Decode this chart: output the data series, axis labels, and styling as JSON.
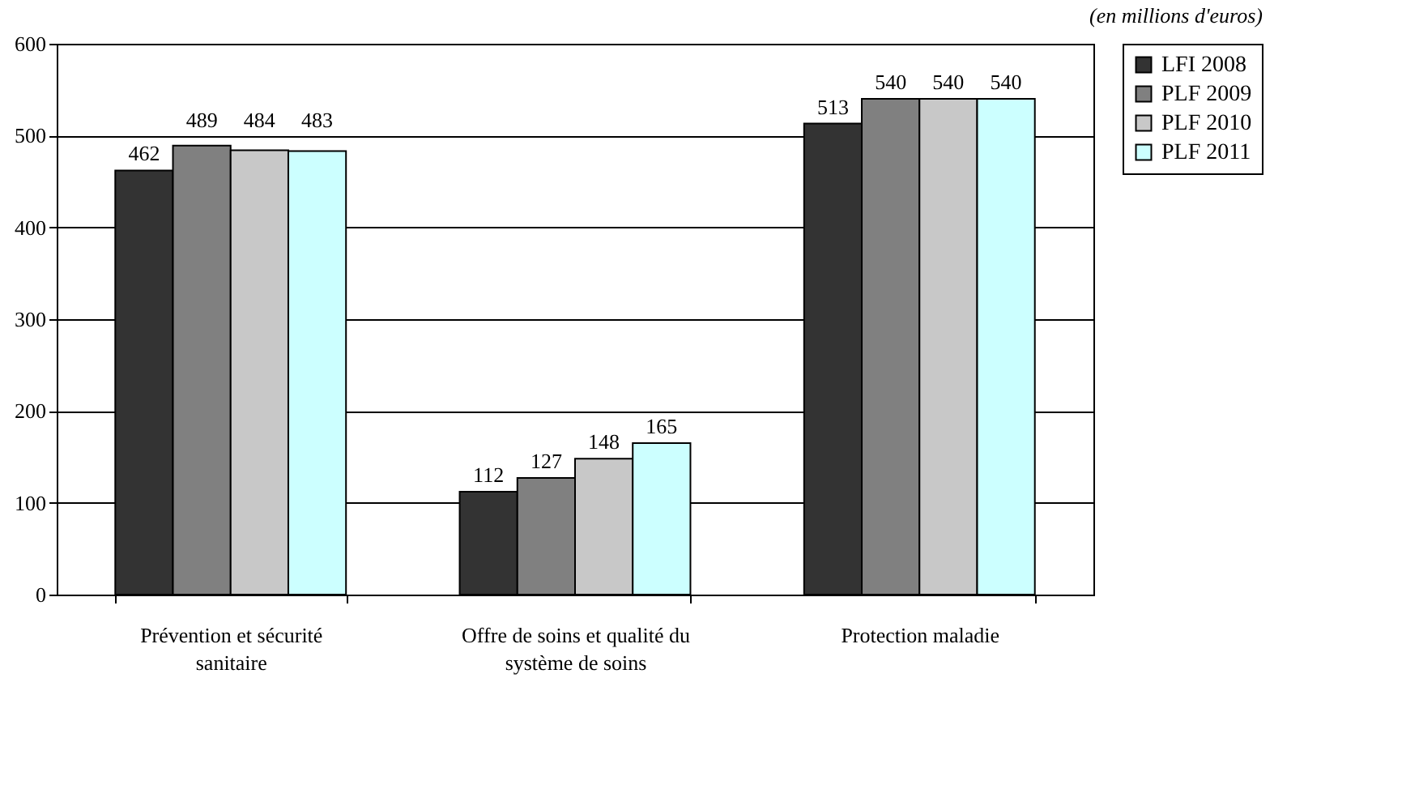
{
  "chart_data": {
    "type": "bar",
    "annotations": [
      "(en millions d'euros)"
    ],
    "categories": [
      "Prévention et sécurité sanitaire",
      "Offre de soins et qualité du système de soins",
      "Protection maladie"
    ],
    "series": [
      {
        "name": "LFI 2008",
        "color": "#333333",
        "values": [
          462,
          112,
          513
        ]
      },
      {
        "name": "PLF 2009",
        "color": "#808080",
        "values": [
          489,
          127,
          540
        ]
      },
      {
        "name": "PLF 2010",
        "color": "#c8c8c8",
        "values": [
          484,
          148,
          540
        ]
      },
      {
        "name": "PLF 2011",
        "color": "#ccffff",
        "values": [
          483,
          165,
          540
        ]
      }
    ],
    "ylim": [
      0,
      600
    ],
    "yticks": [
      0,
      100,
      200,
      300,
      400,
      500,
      600
    ],
    "grid": "y",
    "legend": "right",
    "data_labels": true
  }
}
